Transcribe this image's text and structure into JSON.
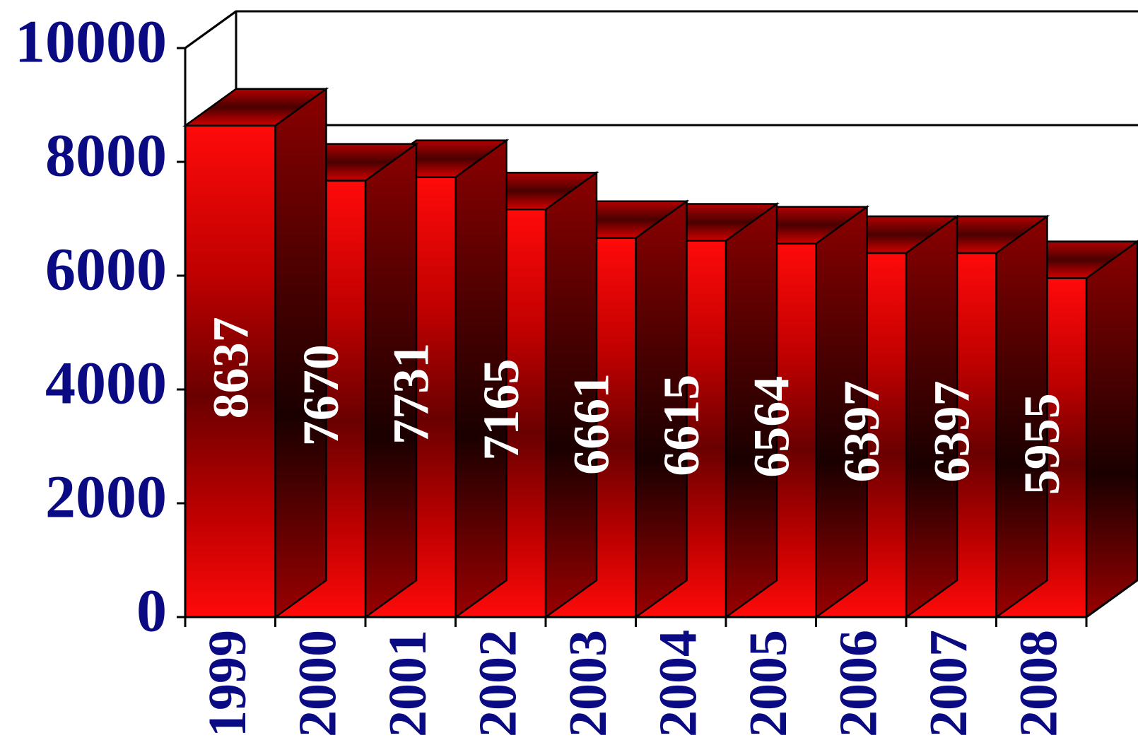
{
  "chart_data": {
    "type": "bar",
    "style": "3d",
    "categories": [
      "1999",
      "2000",
      "2001",
      "2002",
      "2003",
      "2004",
      "2005",
      "2006",
      "2007",
      "2008"
    ],
    "values": [
      8637,
      7670,
      7731,
      7165,
      6661,
      6615,
      6564,
      6397,
      6397,
      5955
    ],
    "title": "",
    "xlabel": "",
    "ylabel": "",
    "ylim": [
      0,
      10000
    ],
    "yticks": [
      "0",
      "2000",
      "4000",
      "6000",
      "8000",
      "10000"
    ],
    "data_labels": "inside-vertical",
    "grid": false,
    "legend": "none",
    "colors": {
      "bar": "#ff0000",
      "bar_dark": "#5a0000",
      "axis_text": "#0a0a82",
      "label_text": "#ffffff",
      "outline": "#000000"
    }
  }
}
